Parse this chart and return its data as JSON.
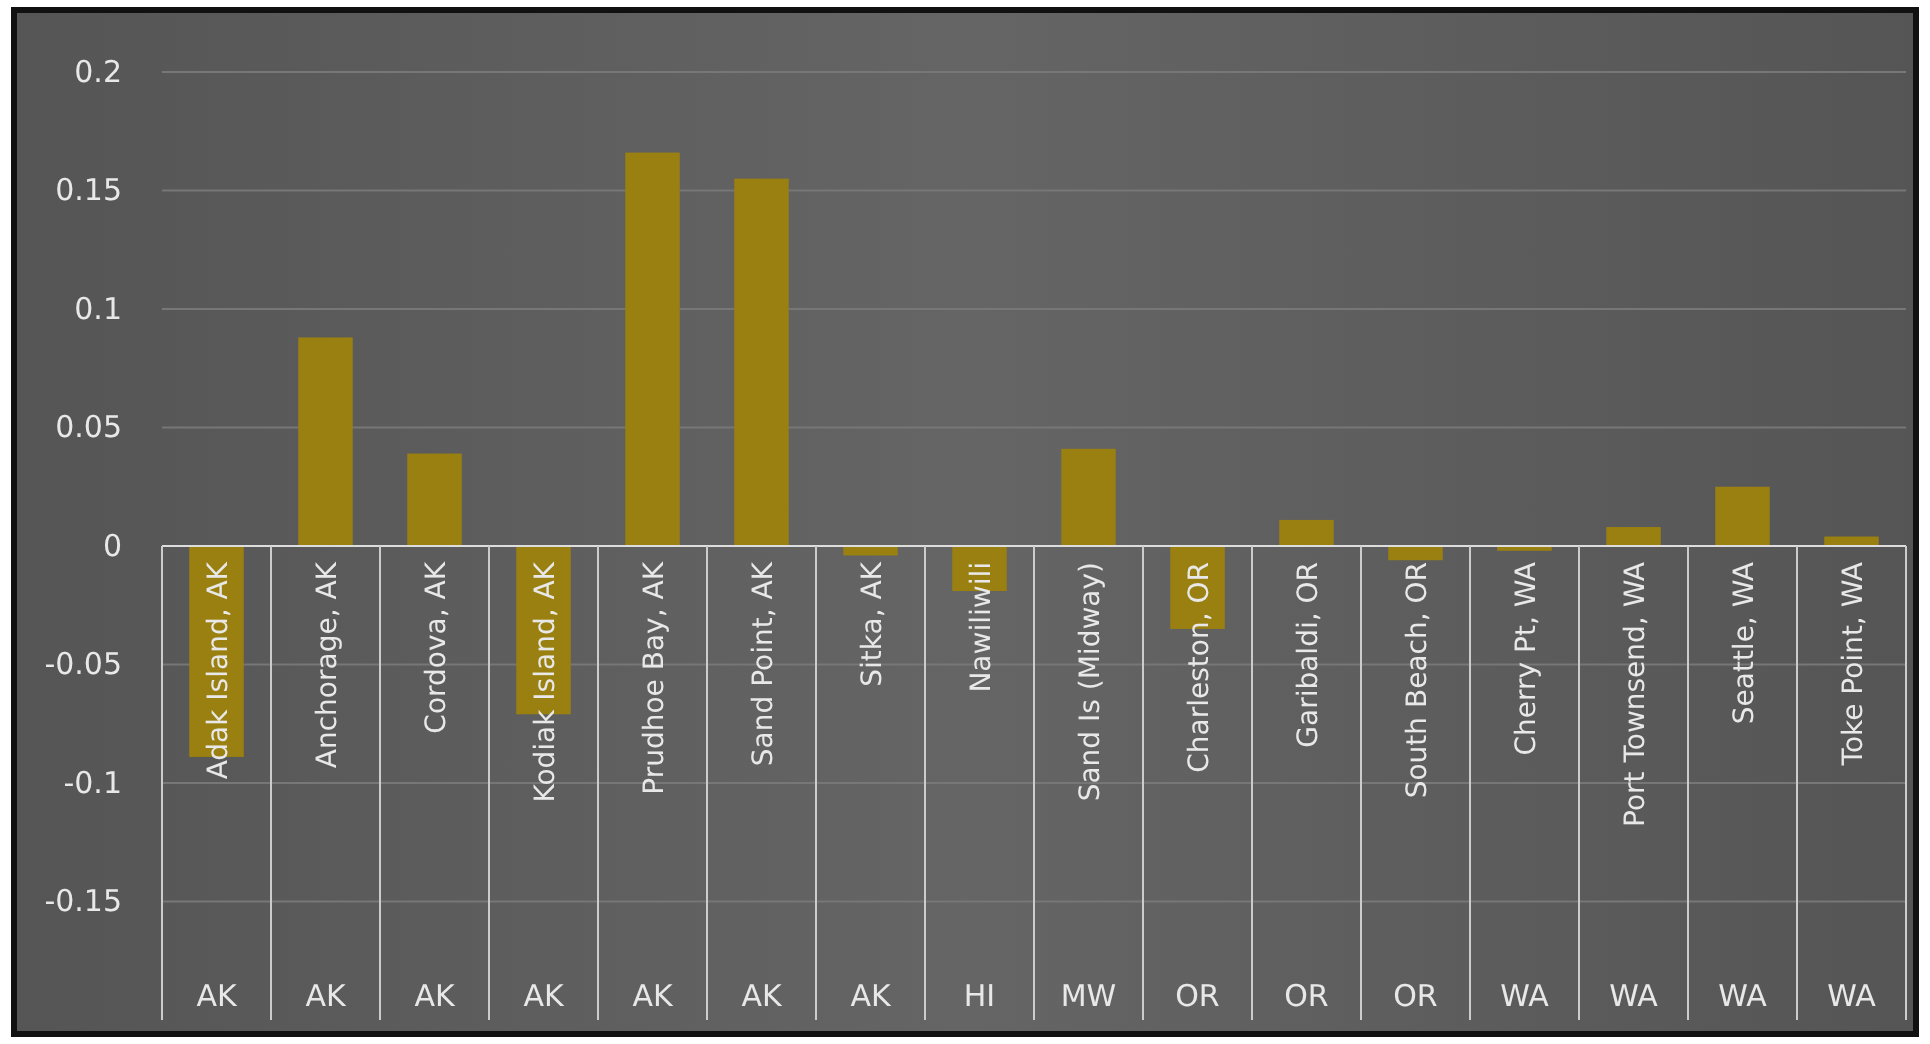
{
  "chart_data": {
    "type": "bar",
    "categories": [
      "Adak Island, AK",
      "Anchorage, AK",
      "Cordova, AK",
      "Kodiak Island, AK",
      "Prudhoe Bay, AK",
      "Sand Point, AK",
      "Sitka, AK",
      "Nawiliwili",
      "Sand Is (Midway)",
      "Charleston, OR",
      "Garibaldi, OR",
      "South Beach, OR",
      "Cherry Pt, WA",
      "Port Townsend, WA",
      "Seattle, WA",
      "Toke Point, WA"
    ],
    "values": [
      -0.089,
      0.088,
      0.039,
      -0.071,
      0.166,
      0.155,
      -0.004,
      -0.019,
      0.041,
      -0.035,
      0.011,
      -0.006,
      -0.002,
      0.008,
      0.025,
      0.004
    ],
    "color": "#9a8010",
    "ylim": [
      -0.2,
      0.2
    ],
    "yticks": [
      -0.15,
      -0.1,
      -0.05,
      0,
      0.05,
      0.1,
      0.15,
      0.2
    ],
    "grid": "y",
    "annotations": [
      "AK",
      "AK",
      "AK",
      "AK",
      "AK",
      "AK",
      "AK",
      "HI",
      "MW",
      "OR",
      "OR",
      "OR",
      "WA",
      "WA",
      "WA",
      "WA"
    ]
  }
}
